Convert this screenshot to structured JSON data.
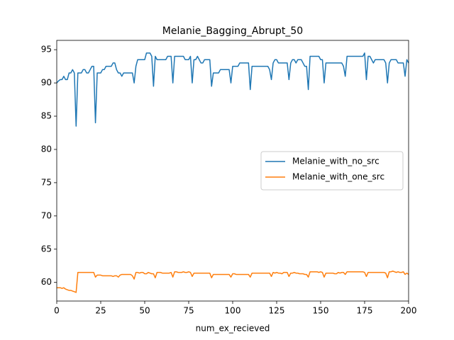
{
  "chart_data": {
    "type": "line",
    "title": "Melanie_Bagging_Abrupt_50",
    "xlabel": "num_ex_recieved",
    "x": [
      0,
      1,
      2,
      3,
      4,
      5,
      6,
      7,
      8,
      9,
      10,
      11,
      12,
      13,
      14,
      15,
      16,
      17,
      18,
      19,
      20,
      21,
      22,
      23,
      24,
      25,
      26,
      27,
      28,
      29,
      30,
      31,
      32,
      33,
      34,
      35,
      36,
      37,
      38,
      39,
      40,
      41,
      42,
      43,
      44,
      45,
      46,
      47,
      48,
      49,
      50,
      51,
      52,
      53,
      54,
      55,
      56,
      57,
      58,
      59,
      60,
      61,
      62,
      63,
      64,
      65,
      66,
      67,
      68,
      69,
      70,
      71,
      72,
      73,
      74,
      75,
      76,
      77,
      78,
      79,
      80,
      81,
      82,
      83,
      84,
      85,
      86,
      87,
      88,
      89,
      90,
      91,
      92,
      93,
      94,
      95,
      96,
      97,
      98,
      99,
      100,
      101,
      102,
      103,
      104,
      105,
      106,
      107,
      108,
      109,
      110,
      111,
      112,
      113,
      114,
      115,
      116,
      117,
      118,
      119,
      120,
      121,
      122,
      123,
      124,
      125,
      126,
      127,
      128,
      129,
      130,
      131,
      132,
      133,
      134,
      135,
      136,
      137,
      138,
      139,
      140,
      141,
      142,
      143,
      144,
      145,
      146,
      147,
      148,
      149,
      150,
      151,
      152,
      153,
      154,
      155,
      156,
      157,
      158,
      159,
      160,
      161,
      162,
      163,
      164,
      165,
      166,
      167,
      168,
      169,
      170,
      171,
      172,
      173,
      174,
      175,
      176,
      177,
      178,
      179,
      180,
      181,
      182,
      183,
      184,
      185,
      186,
      187,
      188,
      189,
      190,
      191,
      192,
      193,
      194,
      195,
      196,
      197,
      198,
      199,
      200
    ],
    "series": [
      {
        "name": "Melanie_with_no_src",
        "color": "#1f77b4",
        "values": [
          90,
          90.3,
          90.5,
          90.5,
          91,
          90.5,
          90.5,
          91.5,
          91.5,
          92,
          91.5,
          83.5,
          91.5,
          91.5,
          91.5,
          92,
          92,
          91.5,
          91.5,
          92,
          92.5,
          92.5,
          84,
          91.5,
          91.5,
          91.5,
          92,
          92,
          92.5,
          92.5,
          92.5,
          92.5,
          93,
          93,
          92,
          91.5,
          91.5,
          91,
          91.5,
          91.5,
          91.5,
          91.5,
          91.5,
          91.5,
          90,
          92.5,
          93.5,
          93.5,
          93.5,
          93.5,
          93.5,
          94.5,
          94.5,
          94.5,
          94,
          89.5,
          94,
          93.5,
          93.5,
          93.5,
          93.5,
          93.5,
          93.5,
          94,
          94,
          94,
          90,
          94,
          94,
          94,
          94,
          94,
          94,
          93.5,
          93.5,
          93.5,
          94,
          90,
          93.5,
          93.5,
          94,
          93.5,
          93,
          93,
          93.5,
          93.5,
          93.5,
          93.5,
          89.5,
          91.5,
          91.5,
          91.5,
          91.5,
          92,
          92,
          92,
          92,
          92,
          92,
          90,
          92.5,
          92.5,
          92.5,
          92.5,
          93,
          93,
          93,
          93,
          93,
          93,
          89,
          92.5,
          92.5,
          92.5,
          92.5,
          92.5,
          92.5,
          92.5,
          92.5,
          92.5,
          92.5,
          92,
          90.5,
          93,
          93.5,
          93.5,
          93,
          93,
          93,
          93,
          93,
          93,
          90.5,
          93,
          93.5,
          93.5,
          93,
          93.5,
          93.5,
          93.5,
          93,
          92.5,
          92.5,
          89,
          94,
          94,
          94,
          94,
          94,
          94,
          93.5,
          93.5,
          90,
          93,
          93,
          93,
          93,
          93,
          93,
          93,
          93,
          93,
          93,
          92.5,
          91,
          94,
          94,
          94,
          94,
          94,
          94,
          94,
          94,
          94,
          94,
          94.5,
          90.5,
          94,
          94,
          93.5,
          93,
          93.5,
          93.5,
          93.5,
          93.5,
          93.5,
          93.5,
          93,
          90,
          93,
          93.5,
          93.5,
          93.5,
          93.5,
          93,
          93,
          93,
          93,
          91,
          93.5,
          93
        ]
      },
      {
        "name": "Melanie_with_one_src",
        "color": "#ff7f0e",
        "values": [
          59.2,
          59.2,
          59.2,
          59.1,
          59.2,
          59,
          58.9,
          58.8,
          58.8,
          58.7,
          58.6,
          58.5,
          61.5,
          61.5,
          61.5,
          61.5,
          61.5,
          61.5,
          61.5,
          61.5,
          61.5,
          61.5,
          60.8,
          61.1,
          61.1,
          61.1,
          61,
          61,
          61,
          61,
          61,
          61,
          60.9,
          61,
          61,
          60.8,
          61.1,
          61.2,
          61.2,
          61.2,
          61.2,
          61.2,
          61.2,
          61,
          60.5,
          61.5,
          61.5,
          61.4,
          61.5,
          61.5,
          61.3,
          61.3,
          61.5,
          61.4,
          61.3,
          61.3,
          60.7,
          61.5,
          61.5,
          61.5,
          61.4,
          61.4,
          61.4,
          61.4,
          61.4,
          61.5,
          60.8,
          61.6,
          61.6,
          61.5,
          61.5,
          61.5,
          61.6,
          61.5,
          61.5,
          61.6,
          61.5,
          60.9,
          61.4,
          61.4,
          61.4,
          61.4,
          61.4,
          61.4,
          61.4,
          61.4,
          61.4,
          61.4,
          60.7,
          61.2,
          61.2,
          61.2,
          61.2,
          61.2,
          61.2,
          61.2,
          61.2,
          61.2,
          61.2,
          60.8,
          61.3,
          61.3,
          61.2,
          61.2,
          61.2,
          61.2,
          61.2,
          61.2,
          61.2,
          61.2,
          60.8,
          61.4,
          61.4,
          61.4,
          61.4,
          61.4,
          61.4,
          61.4,
          61.4,
          61.4,
          61.4,
          61.4,
          60.9,
          61.5,
          61.4,
          61.5,
          61.4,
          61.4,
          61.3,
          61.5,
          61.5,
          61.5,
          60.9,
          61.4,
          61.4,
          61.5,
          61.4,
          61.4,
          61.3,
          61.3,
          61.3,
          61.2,
          61.2,
          60.8,
          61.6,
          61.6,
          61.6,
          61.6,
          61.6,
          61.5,
          61.6,
          61.5,
          60.8,
          61.4,
          61.4,
          61.4,
          61.4,
          61.4,
          61.3,
          61.3,
          61.5,
          61.4,
          61.5,
          61.5,
          61.2,
          61.6,
          61.6,
          61.6,
          61.6,
          61.6,
          61.6,
          61.6,
          61.6,
          61.6,
          61.6,
          61.5,
          60.9,
          61.5,
          61.5,
          61.5,
          61.5,
          61.5,
          61.5,
          61.5,
          61.5,
          61.5,
          61.5,
          61.4,
          60.7,
          61.6,
          61.6,
          61.7,
          61.6,
          61.5,
          61.6,
          61.5,
          61.5,
          61.6,
          61.2,
          61.4,
          61.2
        ]
      }
    ],
    "xlim": [
      0,
      200
    ],
    "xticks": [
      0,
      25,
      50,
      75,
      100,
      125,
      150,
      175,
      200
    ],
    "ylim": [
      57.2,
      96.4
    ],
    "yticks": [
      60,
      65,
      70,
      75,
      80,
      85,
      90,
      95
    ],
    "legend": "center right",
    "grid": false
  }
}
